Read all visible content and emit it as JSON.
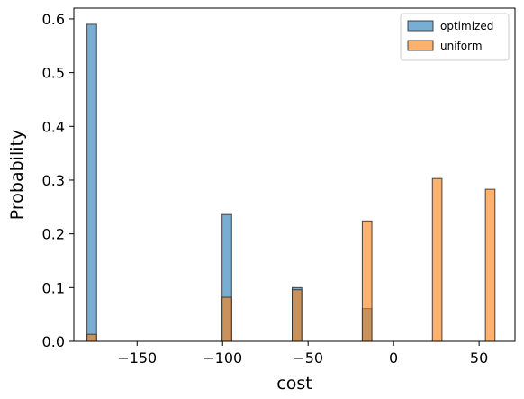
{
  "chart_data": {
    "type": "bar",
    "xlabel": "cost",
    "ylabel": "Probability",
    "xlim": [
      -187,
      71
    ],
    "ylim": [
      0,
      0.62
    ],
    "x_ticks": [
      -150,
      -100,
      -50,
      0,
      50
    ],
    "x_tick_labels": [
      "−150",
      "−100",
      "−50",
      "0",
      "50"
    ],
    "y_ticks": [
      0.0,
      0.1,
      0.2,
      0.3,
      0.4,
      0.5,
      0.6
    ],
    "y_tick_labels": [
      "0.0",
      "0.1",
      "0.2",
      "0.3",
      "0.4",
      "0.5",
      "0.6"
    ],
    "bin_width": 5.6,
    "legend_position": "top-right",
    "series": [
      {
        "name": "optimized",
        "color": "#1f77b4",
        "bins": [
          {
            "x": -176.5,
            "value": 0.59
          },
          {
            "x": -97.5,
            "value": 0.236
          },
          {
            "x": -56.5,
            "value": 0.1
          },
          {
            "x": -15.5,
            "value": 0.061
          },
          {
            "x": 25.5,
            "value": 0.0
          },
          {
            "x": 56.5,
            "value": 0.0
          }
        ]
      },
      {
        "name": "uniform",
        "color": "#ff7f0e",
        "bins": [
          {
            "x": -176.5,
            "value": 0.013
          },
          {
            "x": -97.5,
            "value": 0.082
          },
          {
            "x": -56.5,
            "value": 0.096
          },
          {
            "x": -15.5,
            "value": 0.224
          },
          {
            "x": 25.5,
            "value": 0.303
          },
          {
            "x": 56.5,
            "value": 0.283
          }
        ]
      }
    ]
  }
}
